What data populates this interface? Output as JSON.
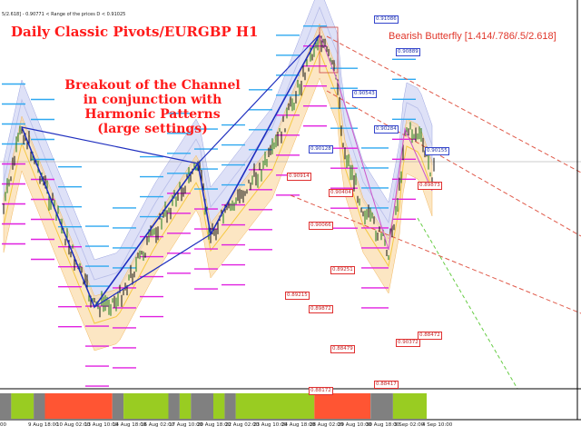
{
  "info_text": "5/2.618] - 0.90771 < Range of the prices D < 0.91025",
  "title": "Daily Classic Pivots/EURGBP H1",
  "pattern_label": "Bearish Butterfly [1.414/.786/.5/2.618]",
  "annotation": {
    "line1": "Breakout of the Channel",
    "line2": "in conjunction with",
    "line3": "Harmonic Patterns",
    "line4": "(large settings)"
  },
  "date_labels": [
    "00",
    "9 Aug 18:00",
    "10 Aug 02:00",
    "13 Aug 10:00",
    "14 Aug 18:00",
    "16 Aug 02:00",
    "17 Aug 10:00",
    "20 Aug 18:00",
    "22 Aug 02:00",
    "23 Aug 10:00",
    "24 Aug 18:00",
    "28 Aug 02:00",
    "29 Aug 10:00",
    "30 Aug 18:00",
    "3 Sep 02:00",
    "4 Sep 10:00"
  ],
  "price_labels_blue": [
    "0.91086",
    "0.90889",
    "0.90543",
    "0.90284",
    "0.90128",
    "0.90155"
  ],
  "price_labels_red": [
    "0.90914",
    "0.90404",
    "0.90066",
    "0.89873",
    "0.89251",
    "0.89215",
    "0.89872",
    "0.88472",
    "0.88479",
    "0.88172",
    "0.88417",
    "0.90372"
  ],
  "colors": {
    "pattern_line": "#1f2fbf",
    "pivot_upper": "#2ea8f0",
    "pivot_lower": "#e020e0",
    "band_blue": "#c8cdf2",
    "band_orange": "#fbdcaa",
    "trend_line": "#e05a4a",
    "bar_green": "#99cc22",
    "bar_red": "#ff5533",
    "bar_gray": "#808080"
  },
  "bottom_segments": [
    {
      "state": "gray",
      "weight": 1
    },
    {
      "state": "green",
      "weight": 2
    },
    {
      "state": "gray",
      "weight": 1
    },
    {
      "state": "red",
      "weight": 6
    },
    {
      "state": "gray",
      "weight": 1
    },
    {
      "state": "green",
      "weight": 4
    },
    {
      "state": "gray",
      "weight": 1
    },
    {
      "state": "green",
      "weight": 1
    },
    {
      "state": "gray",
      "weight": 2
    },
    {
      "state": "green",
      "weight": 1
    },
    {
      "state": "gray",
      "weight": 1
    },
    {
      "state": "green",
      "weight": 7
    },
    {
      "state": "red",
      "weight": 5
    },
    {
      "state": "gray",
      "weight": 2
    },
    {
      "state": "green",
      "weight": 3
    }
  ]
}
